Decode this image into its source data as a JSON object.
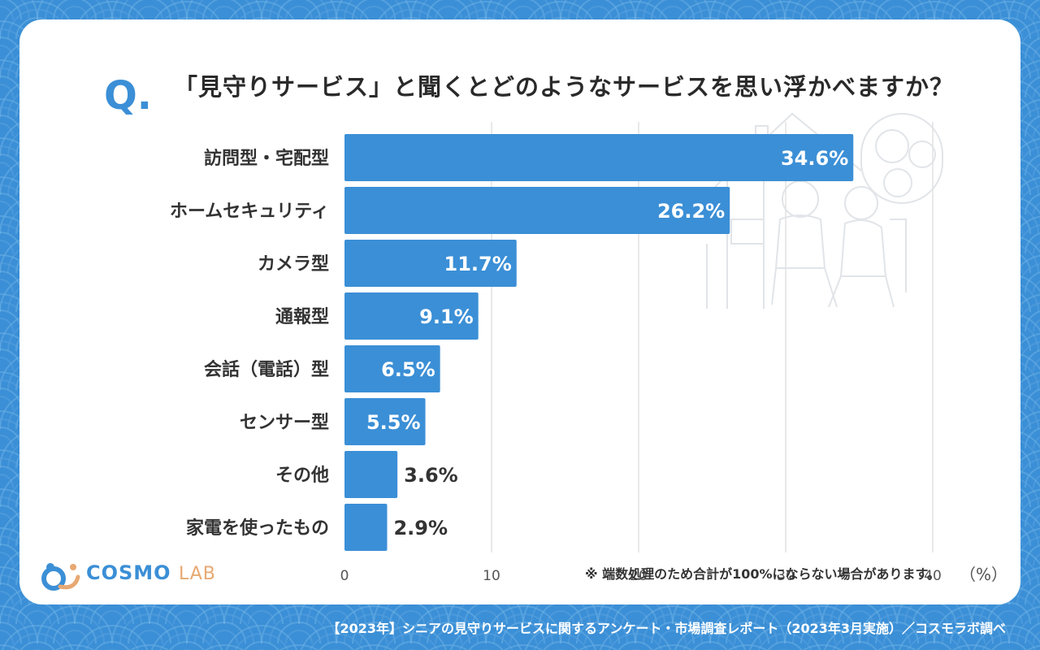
{
  "question": {
    "mark": "Q.",
    "title": "「見守りサービス」と聞くとどのようなサービスを思い浮かべますか？"
  },
  "chart_data": {
    "type": "bar",
    "orientation": "horizontal",
    "categories": [
      "訪問型・宅配型",
      "ホームセキュリティ",
      "カメラ型",
      "通報型",
      "会話（電話）型",
      "センサー型",
      "その他",
      "家電を使ったもの"
    ],
    "values": [
      34.6,
      26.2,
      11.7,
      9.1,
      6.5,
      5.5,
      3.6,
      2.9
    ],
    "value_labels": [
      "34.6%",
      "26.2%",
      "11.7%",
      "9.1%",
      "6.5%",
      "5.5%",
      "3.6%",
      "2.9%"
    ],
    "x_ticks": [
      "0",
      "10",
      "20",
      "30",
      "40"
    ],
    "xlim": [
      0,
      40
    ],
    "unit_label": "（%）",
    "grid": true,
    "bar_color": "#3b8fd6",
    "note": "※ 端数処理のため合計が100%にならない場合があります。"
  },
  "brand": {
    "name_main": "COSMO",
    "name_sub": "LAB"
  },
  "footer": "【2023年】シニアの見守りサービスに関するアンケート・市場調査レポート（2023年3月実施）／コスモラボ調べ",
  "colors": {
    "background": "#3b8fd6",
    "card": "#ffffff",
    "accent": "#3b8fd6",
    "logo_accent": "#e8a872"
  },
  "illustration": "family-caregiver-line-art"
}
